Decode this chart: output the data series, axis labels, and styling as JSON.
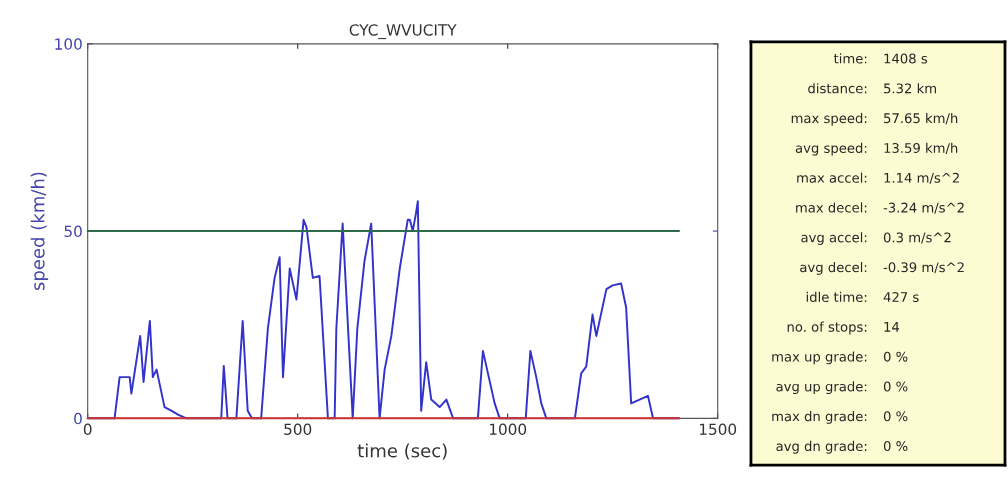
{
  "chart_data": [
    {
      "type": "line",
      "title": "CYC_WVUCITY",
      "xlabel": "time (sec)",
      "ylabel": "speed (km/h)",
      "xlim": [
        0,
        1500
      ],
      "ylim": [
        0,
        100
      ],
      "xticks": [
        0,
        500,
        1000,
        1500
      ],
      "yticks": [
        0,
        50,
        100
      ],
      "grid": false,
      "legend": false,
      "series": [
        {
          "color": "#3333cc",
          "x": [
            0,
            64,
            76,
            100,
            104,
            125,
            133,
            148,
            155,
            164,
            183,
            200,
            215,
            235,
            318,
            324,
            333,
            354,
            369,
            381,
            391,
            413,
            429,
            445,
            457,
            465,
            481,
            497,
            514,
            521,
            536,
            552,
            572,
            588,
            592,
            607,
            631,
            642,
            659,
            675,
            695,
            707,
            723,
            743,
            762,
            767,
            774,
            782,
            786,
            794,
            806,
            818,
            838,
            854,
            870,
            929,
            941,
            955,
            969,
            981,
            1043,
            1054,
            1068,
            1080,
            1092,
            1160,
            1175,
            1187,
            1202,
            1211,
            1235,
            1250,
            1270,
            1282,
            1294,
            1314,
            1334,
            1346,
            1408
          ],
          "values": [
            0,
            0,
            11,
            11,
            6.6,
            22,
            9.7,
            26,
            11,
            13,
            3,
            2,
            1,
            0,
            0,
            14,
            0,
            0,
            26,
            2,
            0,
            0,
            24,
            37.5,
            43,
            11,
            40,
            31.7,
            53,
            51,
            37.5,
            38,
            0,
            0,
            24,
            52,
            0,
            24,
            42,
            52,
            0,
            13,
            22,
            40,
            53,
            53,
            50,
            55,
            58,
            2,
            15,
            5,
            3,
            5,
            0,
            0,
            18,
            11,
            4,
            0,
            0,
            18,
            11,
            4,
            0,
            0,
            12,
            13.8,
            27.7,
            22,
            34.5,
            35.5,
            36,
            29.6,
            4,
            5,
            6,
            0,
            0
          ]
        },
        {
          "color": "#2e6b4a",
          "x": [
            0,
            1408
          ],
          "values": [
            50,
            50
          ]
        },
        {
          "color": "#cc3333",
          "x": [
            0,
            1408
          ],
          "values": [
            0,
            0
          ]
        }
      ]
    },
    {
      "type": "other",
      "annotations": [
        "time:",
        "1408 s",
        "distance:",
        "5.32 km",
        "max speed:",
        "57.65 km/h",
        "avg speed:",
        "13.59 km/h",
        "max accel:",
        "1.14 m/s^2",
        "max decel:",
        "-3.24 m/s^2",
        "avg accel:",
        "0.3 m/s^2",
        "avg decel:",
        "-0.39 m/s^2",
        "idle time:",
        "427 s",
        "no. of stops:",
        "14",
        "max up grade:",
        "0 %",
        "avg up grade:",
        "0 %",
        "max dn grade:",
        "0 %",
        "avg dn grade:",
        "0 %"
      ]
    }
  ]
}
